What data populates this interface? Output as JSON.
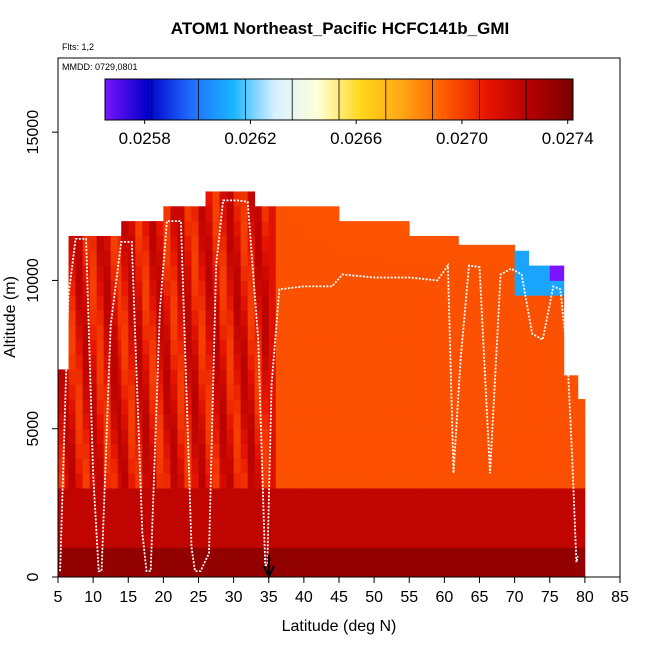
{
  "chart_data": {
    "type": "heatmap",
    "title": "ATOM1 Northeast_Pacific HCFC141b_GMI",
    "subtitle_flights": "Flts: 1,2",
    "subtitle_dates": "MMDD: 0729,0801",
    "xlabel": "Latitude (deg N)",
    "ylabel": "Altitude (m)",
    "xlim": [
      5,
      85
    ],
    "ylim": [
      0,
      17500
    ],
    "x_ticks": [
      5,
      10,
      15,
      20,
      25,
      30,
      35,
      40,
      45,
      50,
      55,
      60,
      65,
      70,
      75,
      80,
      85
    ],
    "y_ticks": [
      0,
      5000,
      10000,
      15000
    ],
    "colorbar": {
      "range": [
        0.02565,
        0.02742
      ],
      "tick_values": [
        0.0258,
        0.0262,
        0.0266,
        0.027,
        0.0274
      ],
      "tick_labels": [
        "0.0258",
        "0.0262",
        "0.0266",
        "0.0270",
        "0.0274"
      ],
      "palette": [
        "#7a14ff",
        "#0000c8",
        "#1e6bff",
        "#19b4ff",
        "#d8f0ff",
        "#ffffd8",
        "#ffd81e",
        "#ffa514",
        "#ff5a00",
        "#e61400",
        "#b40000",
        "#780000"
      ]
    },
    "curtain_columns": [
      {
        "lat": [
          5,
          6.5
        ],
        "top": 7000
      },
      {
        "lat": [
          6.5,
          14
        ],
        "top": 11500
      },
      {
        "lat": [
          14,
          20
        ],
        "top": 12000
      },
      {
        "lat": [
          20,
          26
        ],
        "top": 12500
      },
      {
        "lat": [
          26,
          33
        ],
        "top": 13000
      },
      {
        "lat": [
          33,
          45
        ],
        "top": 12500
      },
      {
        "lat": [
          45,
          55
        ],
        "top": 12000
      },
      {
        "lat": [
          55,
          62
        ],
        "top": 11500
      },
      {
        "lat": [
          62,
          70
        ],
        "top": 11200
      },
      {
        "lat": [
          70,
          72
        ],
        "top": 11000
      },
      {
        "lat": [
          72,
          77
        ],
        "top": 10500
      },
      {
        "lat": [
          77,
          79
        ],
        "top": 6800
      },
      {
        "lat": [
          79,
          80
        ],
        "top": 6000
      }
    ],
    "flight_track": {
      "lat": [
        5.3,
        6.5,
        7.5,
        9,
        10,
        10.8,
        11.2,
        12.5,
        14,
        15.5,
        17,
        17.6,
        18.2,
        19.5,
        20.5,
        22.5,
        24,
        24.5,
        25.3,
        26.5,
        27.5,
        28.5,
        30.5,
        32,
        33.5,
        34.5,
        34.8,
        35.4,
        36.5,
        40,
        44,
        45.5,
        50,
        55,
        59,
        60.5,
        61.3,
        62.3,
        63.5,
        65,
        66.5,
        68,
        69.5,
        71,
        72.5,
        74,
        75.5,
        76.5,
        77.5,
        78.2,
        78.8,
        79
      ],
      "alt": [
        200,
        9500,
        11400,
        11400,
        3500,
        200,
        200,
        8500,
        11300,
        11300,
        1500,
        200,
        200,
        9000,
        12000,
        12000,
        1000,
        200,
        200,
        800,
        10500,
        12700,
        12700,
        12650,
        8000,
        400,
        400,
        6500,
        9700,
        9800,
        9800,
        10200,
        10100,
        10100,
        10000,
        10500,
        3500,
        7300,
        10500,
        10450,
        3500,
        10200,
        10400,
        10200,
        8200,
        8000,
        9800,
        9700,
        7500,
        4000,
        500,
        700
      ]
    },
    "launch_marker_lat": 35
  }
}
